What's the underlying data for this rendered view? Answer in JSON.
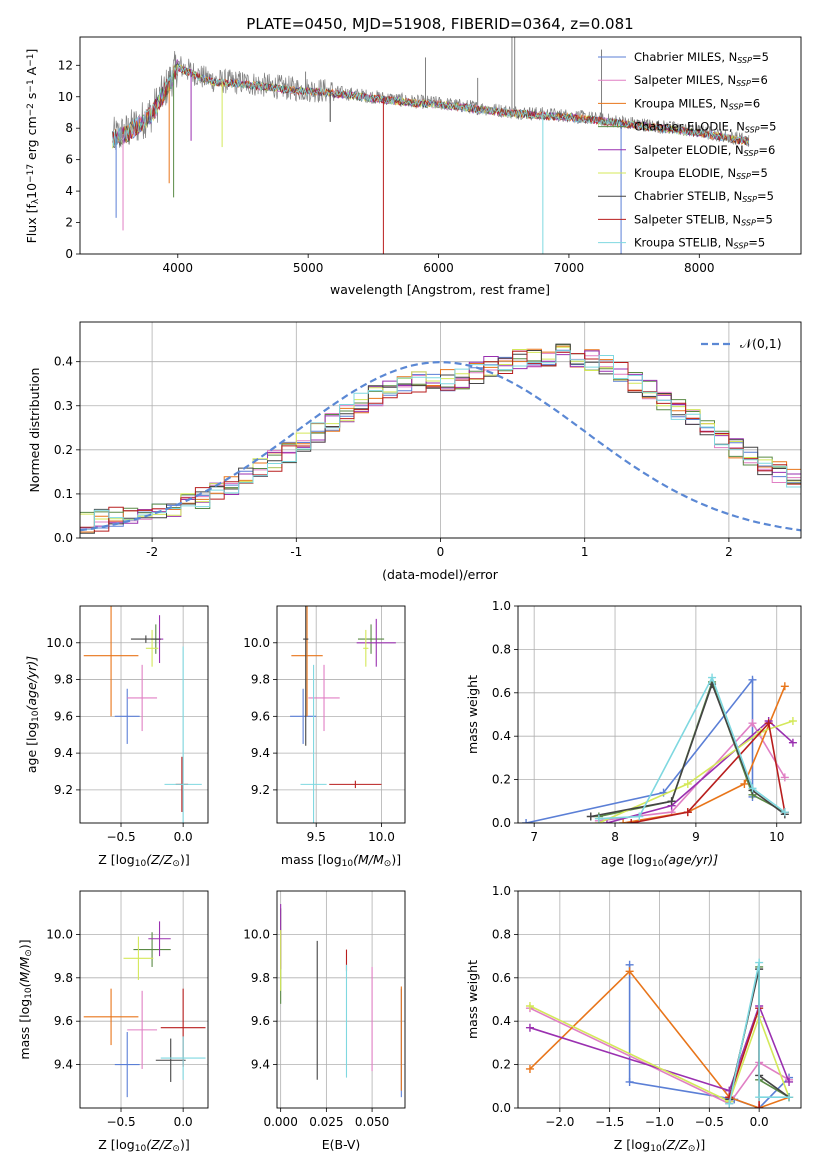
{
  "figure_title": "PLATE=0450, MJD=51908, FIBERID=0364, z=0.081",
  "colors": {
    "Chabrier MILES": "#5b7fd6",
    "Salpeter MILES": "#e07fc4",
    "Kroupa MILES": "#e8751a",
    "Chabrier ELODIE": "#5a8a45",
    "Salpeter ELODIE": "#9a30b0",
    "Kroupa ELODIE": "#d4e85a",
    "Chabrier STELIB": "#444444",
    "Salpeter STELIB": "#b81e1e",
    "Kroupa STELIB": "#7fd8e0",
    "gaussian": "#5b88d4",
    "observed": "#808080"
  },
  "chart_data": [
    {
      "id": "spectrum",
      "type": "line",
      "xlabel": "wavelength [Angstrom, rest frame]",
      "ylabel": "Flux [f",
      "ylabel_parts": [
        "Flux [f",
        "λ",
        "10",
        "−17",
        " erg cm",
        "−2",
        " s",
        "−1",
        " A",
        "−1",
        "]"
      ],
      "xlim": [
        3250,
        8780
      ],
      "ylim": [
        0,
        13.8
      ],
      "xticks": [
        4000,
        5000,
        6000,
        7000,
        8000
      ],
      "yticks": [
        0,
        2,
        4,
        6,
        8,
        10,
        12
      ],
      "grid": false,
      "legend_position": "top-right",
      "legend": [
        {
          "name": "Chabrier MILES",
          "n": "5"
        },
        {
          "name": "Salpeter MILES",
          "n": "6"
        },
        {
          "name": "Kroupa MILES",
          "n": "6"
        },
        {
          "name": "Chabrier ELODIE",
          "n": "5"
        },
        {
          "name": "Salpeter ELODIE",
          "n": "6"
        },
        {
          "name": "Kroupa ELODIE",
          "n": "5"
        },
        {
          "name": "Chabrier STELIB",
          "n": "5"
        },
        {
          "name": "Salpeter STELIB",
          "n": "5"
        },
        {
          "name": "Kroupa STELIB",
          "n": "5"
        }
      ],
      "legend_prefix": "N",
      "legend_sub": "SSP",
      "legend_eq": "=",
      "continuum": {
        "x": [
          3500,
          3600,
          3700,
          3800,
          3900,
          4000,
          4100,
          4200,
          4300,
          4500,
          4700,
          4900,
          5100,
          5300,
          5500,
          5800,
          6000,
          6200,
          6500,
          6800,
          7000,
          7200,
          7400,
          7600,
          7800,
          8000,
          8200,
          8400
        ],
        "y": [
          7.4,
          7.7,
          8.3,
          9.0,
          10.4,
          12.0,
          11.6,
          11.2,
          11.0,
          10.9,
          10.7,
          10.5,
          10.4,
          10.2,
          10.0,
          9.7,
          9.6,
          9.4,
          9.1,
          8.9,
          8.8,
          8.6,
          8.4,
          8.2,
          8.0,
          7.8,
          7.5,
          7.2
        ]
      },
      "absorption_lines": [
        {
          "x": 3527,
          "y": 2.3
        },
        {
          "x": 3580,
          "y": 1.5
        },
        {
          "x": 3934,
          "y": 4.5
        },
        {
          "x": 3968,
          "y": 3.6
        },
        {
          "x": 4102,
          "y": 7.2
        },
        {
          "x": 4340,
          "y": 6.8
        },
        {
          "x": 5169,
          "y": 8.4
        },
        {
          "x": 5577,
          "y": 0.0
        },
        {
          "x": 6800,
          "y": 0.0
        },
        {
          "x": 7400,
          "y": 0.0
        }
      ],
      "emission_lines": [
        {
          "x": 6563,
          "y": 13.8
        },
        {
          "x": 6584,
          "y": 13.8
        },
        {
          "x": 6300,
          "y": 11.2
        },
        {
          "x": 4980,
          "y": 11.6
        },
        {
          "x": 5900,
          "y": 12.5
        },
        {
          "x": 7250,
          "y": 13.0
        }
      ]
    },
    {
      "id": "residuals",
      "type": "histogram",
      "xlabel": "(data-model)/error",
      "ylabel": "Normed distribution",
      "xlim": [
        -2.5,
        2.5
      ],
      "ylim": [
        0,
        0.49
      ],
      "xticks": [
        -2,
        -1,
        0,
        1,
        2
      ],
      "yticks": [
        0.0,
        0.1,
        0.2,
        0.3,
        0.4
      ],
      "grid": true,
      "legend_position": "top-right",
      "legend_label": "𝒩(0,1)",
      "bin_edges_start": -2.5,
      "bin_width": 0.1,
      "base_hist": [
        0.035,
        0.04,
        0.045,
        0.052,
        0.058,
        0.063,
        0.07,
        0.08,
        0.09,
        0.104,
        0.12,
        0.138,
        0.155,
        0.175,
        0.196,
        0.218,
        0.24,
        0.262,
        0.285,
        0.305,
        0.322,
        0.335,
        0.345,
        0.352,
        0.356,
        0.358,
        0.362,
        0.375,
        0.388,
        0.398,
        0.405,
        0.41,
        0.415,
        0.418,
        0.412,
        0.405,
        0.392,
        0.375,
        0.355,
        0.335,
        0.313,
        0.29,
        0.268,
        0.246,
        0.225,
        0.205,
        0.185,
        0.166,
        0.148,
        0.132,
        0.118,
        0.105,
        0.094,
        0.086,
        0.078,
        0.072,
        0.067,
        0.062,
        0.058,
        0.055,
        0.052,
        0.05,
        0.048,
        0.046,
        0.045,
        0.044,
        0.043,
        0.042,
        0.041,
        0.04,
        0.04,
        0.04,
        0.04,
        0.04,
        0.04,
        0.04,
        0.04,
        0.04,
        0.04,
        0.04,
        0.04,
        0.04,
        0.04,
        0.04,
        0.04,
        0.04,
        0.04,
        0.04,
        0.04,
        0.04,
        0.04,
        0.04,
        0.04,
        0.04,
        0.04,
        0.04,
        0.04,
        0.04,
        0.04,
        0.04,
        0.04
      ]
    },
    {
      "id": "age-vs-Z",
      "type": "scatter",
      "xlabel": "Z [log",
      "xlabel_parts": [
        "Z [log",
        "10",
        "(Z/Z",
        "⊙",
        ")]"
      ],
      "ylabel_parts": [
        "age  [log",
        "10",
        "(age/yr)]"
      ],
      "xlim": [
        -0.83,
        0.2
      ],
      "ylim": [
        9.02,
        10.2
      ],
      "xticks": [
        -0.5,
        0.0
      ],
      "xtick_labels": [
        "−0.5",
        "0.0"
      ],
      "yticks": [
        9.2,
        9.4,
        9.6,
        9.8,
        10.0
      ],
      "grid": true,
      "points": [
        {
          "s": "Chabrier MILES",
          "x": -0.45,
          "y": 9.6,
          "xe": 0.1,
          "ye": 0.15
        },
        {
          "s": "Salpeter MILES",
          "x": -0.33,
          "y": 9.7,
          "xe": 0.12,
          "ye": 0.18
        },
        {
          "s": "Kroupa MILES",
          "x": -0.58,
          "y": 9.93,
          "xe": 0.22,
          "ye": 0.33
        },
        {
          "s": "Chabrier ELODIE",
          "x": -0.22,
          "y": 10.02,
          "xe": 0.04,
          "ye": 0.08
        },
        {
          "s": "Salpeter ELODIE",
          "x": -0.19,
          "y": 10.02,
          "xe": 0.03,
          "ye": 0.13
        },
        {
          "s": "Kroupa ELODIE",
          "x": -0.25,
          "y": 9.97,
          "xe": 0.05,
          "ye": 0.1
        },
        {
          "s": "Chabrier STELIB",
          "x": -0.3,
          "y": 10.02,
          "xe": 0.12,
          "ye": 0.02
        },
        {
          "s": "Salpeter STELIB",
          "x": -0.01,
          "y": 9.23,
          "xe": 0.05,
          "ye": 0.15
        },
        {
          "s": "Kroupa STELIB",
          "x": 0.0,
          "y": 9.23,
          "xe": 0.15,
          "ye": 0.75
        }
      ]
    },
    {
      "id": "age-vs-mass",
      "type": "scatter",
      "xlabel_parts": [
        "mass [log",
        "10",
        "(M/M",
        "⊙",
        ")]"
      ],
      "xlim": [
        9.2,
        10.18
      ],
      "ylim": [
        9.02,
        10.2
      ],
      "xticks": [
        9.5,
        10.0
      ],
      "xtick_labels": [
        "9.5",
        "10.0"
      ],
      "yticks": [
        9.2,
        9.4,
        9.6,
        9.8,
        10.0
      ],
      "grid": true,
      "points": [
        {
          "s": "Chabrier MILES",
          "x": 9.4,
          "y": 9.6,
          "xe": 0.1,
          "ye": 0.15
        },
        {
          "s": "Salpeter MILES",
          "x": 9.56,
          "y": 9.7,
          "xe": 0.12,
          "ye": 0.18
        },
        {
          "s": "Kroupa MILES",
          "x": 9.43,
          "y": 9.93,
          "xe": 0.12,
          "ye": 0.33
        },
        {
          "s": "Chabrier ELODIE",
          "x": 9.92,
          "y": 10.02,
          "xe": 0.1,
          "ye": 0.08
        },
        {
          "s": "Salpeter ELODIE",
          "x": 9.96,
          "y": 10.0,
          "xe": 0.15,
          "ye": 0.13
        },
        {
          "s": "Kroupa ELODIE",
          "x": 9.88,
          "y": 9.97,
          "xe": 0.02,
          "ye": 0.1
        },
        {
          "s": "Chabrier STELIB",
          "x": 9.42,
          "y": 10.02,
          "xe": 0.02,
          "ye": 0.58
        },
        {
          "s": "Salpeter STELIB",
          "x": 9.8,
          "y": 9.23,
          "xe": 0.2,
          "ye": 0.02
        },
        {
          "s": "Kroupa STELIB",
          "x": 9.48,
          "y": 9.23,
          "xe": 0.1,
          "ye": 0.65
        }
      ]
    },
    {
      "id": "mass-weight-vs-age",
      "type": "line",
      "xlabel_parts": [
        "age  [log",
        "10",
        "(age/yr)]"
      ],
      "ylabel": "mass weight",
      "xlim": [
        6.8,
        10.3
      ],
      "ylim": [
        0,
        1.0
      ],
      "xticks": [
        7,
        8,
        9,
        10
      ],
      "yticks": [
        0.0,
        0.2,
        0.4,
        0.6,
        0.8,
        1.0
      ],
      "grid": true,
      "series": [
        {
          "s": "Chabrier MILES",
          "x": [
            6.9,
            8.6,
            9.7,
            9.7
          ],
          "y": [
            0.0,
            0.14,
            0.66,
            0.12
          ]
        },
        {
          "s": "Salpeter MILES",
          "x": [
            7.8,
            8.7,
            9.7,
            10.1
          ],
          "y": [
            0.01,
            0.05,
            0.46,
            0.21
          ]
        },
        {
          "s": "Kroupa MILES",
          "x": [
            8.1,
            8.9,
            9.6,
            10.1
          ],
          "y": [
            0.0,
            0.05,
            0.18,
            0.63
          ]
        },
        {
          "s": "Chabrier ELODIE",
          "x": [
            7.8,
            8.7,
            9.2,
            9.7,
            10.1
          ],
          "y": [
            0.03,
            0.1,
            0.65,
            0.13,
            0.05
          ]
        },
        {
          "s": "Salpeter ELODIE",
          "x": [
            7.9,
            8.7,
            9.9,
            10.2
          ],
          "y": [
            0.0,
            0.08,
            0.47,
            0.37
          ]
        },
        {
          "s": "Kroupa ELODIE",
          "x": [
            7.8,
            8.9,
            9.8,
            10.2
          ],
          "y": [
            0.0,
            0.18,
            0.42,
            0.47
          ]
        },
        {
          "s": "Chabrier STELIB",
          "x": [
            7.7,
            8.7,
            9.2,
            9.7,
            10.1
          ],
          "y": [
            0.03,
            0.1,
            0.64,
            0.15,
            0.04
          ]
        },
        {
          "s": "Salpeter STELIB",
          "x": [
            8.2,
            8.9,
            9.9,
            10.1
          ],
          "y": [
            0.0,
            0.05,
            0.46,
            0.05
          ]
        },
        {
          "s": "Kroupa STELIB",
          "x": [
            7.8,
            8.3,
            9.2,
            9.7,
            10.1
          ],
          "y": [
            0.02,
            0.03,
            0.67,
            0.16,
            0.05
          ]
        }
      ]
    },
    {
      "id": "mass-vs-Z",
      "type": "scatter",
      "xlabel_parts": [
        "Z [log",
        "10",
        "(Z/Z",
        "⊙",
        ")]"
      ],
      "ylabel_parts": [
        "mass [log",
        "10",
        "(M/M",
        "⊙",
        ")]"
      ],
      "xlim": [
        -0.83,
        0.2
      ],
      "ylim": [
        9.2,
        10.2
      ],
      "xticks": [
        -0.5,
        0.0
      ],
      "xtick_labels": [
        "−0.5",
        "0.0"
      ],
      "yticks": [
        9.4,
        9.6,
        9.8,
        10.0
      ],
      "grid": true,
      "points": [
        {
          "s": "Chabrier MILES",
          "x": -0.45,
          "y": 9.4,
          "xe": 0.1,
          "ye": 0.15
        },
        {
          "s": "Salpeter MILES",
          "x": -0.33,
          "y": 9.56,
          "xe": 0.12,
          "ye": 0.18
        },
        {
          "s": "Kroupa MILES",
          "x": -0.58,
          "y": 9.62,
          "xe": 0.22,
          "ye": 0.13
        },
        {
          "s": "Chabrier ELODIE",
          "x": -0.25,
          "y": 9.93,
          "xe": 0.15,
          "ye": 0.08
        },
        {
          "s": "Salpeter ELODIE",
          "x": -0.19,
          "y": 9.98,
          "xe": 0.09,
          "ye": 0.08
        },
        {
          "s": "Kroupa ELODIE",
          "x": -0.36,
          "y": 9.89,
          "xe": 0.12,
          "ye": 0.1
        },
        {
          "s": "Chabrier STELIB",
          "x": -0.1,
          "y": 9.42,
          "xe": 0.12,
          "ye": 0.1
        },
        {
          "s": "Salpeter STELIB",
          "x": 0.0,
          "y": 9.57,
          "xe": 0.18,
          "ye": 0.18
        },
        {
          "s": "Kroupa STELIB",
          "x": 0.0,
          "y": 9.43,
          "xe": 0.18,
          "ye": 0.1
        }
      ]
    },
    {
      "id": "mass-vs-ebv",
      "type": "scatter",
      "xlabel": "E(B-V)",
      "xlim": [
        -0.002,
        0.068
      ],
      "ylim": [
        9.2,
        10.2
      ],
      "xticks": [
        0.0,
        0.025,
        0.05
      ],
      "xtick_labels": [
        "0.000",
        "0.025",
        "0.050"
      ],
      "yticks": [
        9.4,
        9.6,
        9.8,
        10.0
      ],
      "grid": true,
      "points": [
        {
          "s": "Chabrier MILES",
          "x": 0.066,
          "y": 9.5,
          "xe": 0,
          "ye": 0.25
        },
        {
          "s": "Salpeter MILES",
          "x": 0.05,
          "y": 9.61,
          "xe": 0,
          "ye": 0.24
        },
        {
          "s": "Kroupa MILES",
          "x": 0.066,
          "y": 9.52,
          "xe": 0,
          "ye": 0.24
        },
        {
          "s": "Chabrier ELODIE",
          "x": 0.0,
          "y": 9.9,
          "xe": 0,
          "ye": 0.22
        },
        {
          "s": "Salpeter ELODIE",
          "x": 0.0,
          "y": 9.99,
          "xe": 0,
          "ye": 0.15
        },
        {
          "s": "Kroupa ELODIE",
          "x": 0.0,
          "y": 9.88,
          "xe": 0,
          "ye": 0.14
        },
        {
          "s": "Chabrier STELIB",
          "x": 0.02,
          "y": 9.65,
          "xe": 0,
          "ye": 0.32
        },
        {
          "s": "Salpeter STELIB",
          "x": 0.036,
          "y": 9.88,
          "xe": 0,
          "ye": 0.05
        },
        {
          "s": "Kroupa STELIB",
          "x": 0.036,
          "y": 9.6,
          "xe": 0,
          "ye": 0.26
        }
      ]
    },
    {
      "id": "mass-weight-vs-Z",
      "type": "line",
      "xlabel_parts": [
        "Z [log",
        "10",
        "(Z/Z",
        "⊙",
        ")]"
      ],
      "ylabel": "mass weight",
      "xlim": [
        -2.42,
        0.42
      ],
      "ylim": [
        0,
        1.0
      ],
      "xticks": [
        -2.0,
        -1.5,
        -1.0,
        -0.5,
        0.0
      ],
      "xtick_labels": [
        "−2.0",
        "−1.5",
        "−1.0",
        "−0.5",
        "0.0"
      ],
      "yticks": [
        0.0,
        0.2,
        0.4,
        0.6,
        0.8,
        1.0
      ],
      "grid": true,
      "series": [
        {
          "s": "Chabrier MILES",
          "x": [
            -1.3,
            -1.3,
            -0.25,
            0.0,
            0.3
          ],
          "y": [
            0.66,
            0.12,
            0.04,
            0.0,
            0.14
          ]
        },
        {
          "s": "Salpeter MILES",
          "x": [
            -2.3,
            -0.3,
            0.0,
            0.3
          ],
          "y": [
            0.46,
            0.02,
            0.21,
            0.13
          ]
        },
        {
          "s": "Kroupa MILES",
          "x": [
            -2.3,
            -1.3,
            -0.3,
            0.0,
            0.3
          ],
          "y": [
            0.18,
            0.63,
            0.05,
            0.0,
            0.05
          ]
        },
        {
          "s": "Chabrier ELODIE",
          "x": [
            -0.3,
            0.0,
            0.0,
            0.3
          ],
          "y": [
            0.03,
            0.65,
            0.13,
            0.05
          ]
        },
        {
          "s": "Salpeter ELODIE",
          "x": [
            -2.3,
            -0.3,
            0.0,
            0.3
          ],
          "y": [
            0.37,
            0.08,
            0.47,
            0.12
          ]
        },
        {
          "s": "Kroupa ELODIE",
          "x": [
            -2.3,
            -0.3,
            0.0,
            0.3
          ],
          "y": [
            0.47,
            0.03,
            0.42,
            0.05
          ]
        },
        {
          "s": "Chabrier STELIB",
          "x": [
            -0.3,
            0.0,
            0.0,
            0.3
          ],
          "y": [
            0.04,
            0.64,
            0.15,
            0.05
          ]
        },
        {
          "s": "Salpeter STELIB",
          "x": [
            -0.3,
            0.0,
            0.0
          ],
          "y": [
            0.05,
            0.46,
            0.0
          ]
        },
        {
          "s": "Kroupa STELIB",
          "x": [
            -0.3,
            0.0,
            0.0,
            0.3
          ],
          "y": [
            0.02,
            0.67,
            0.05,
            0.05
          ]
        }
      ]
    }
  ]
}
